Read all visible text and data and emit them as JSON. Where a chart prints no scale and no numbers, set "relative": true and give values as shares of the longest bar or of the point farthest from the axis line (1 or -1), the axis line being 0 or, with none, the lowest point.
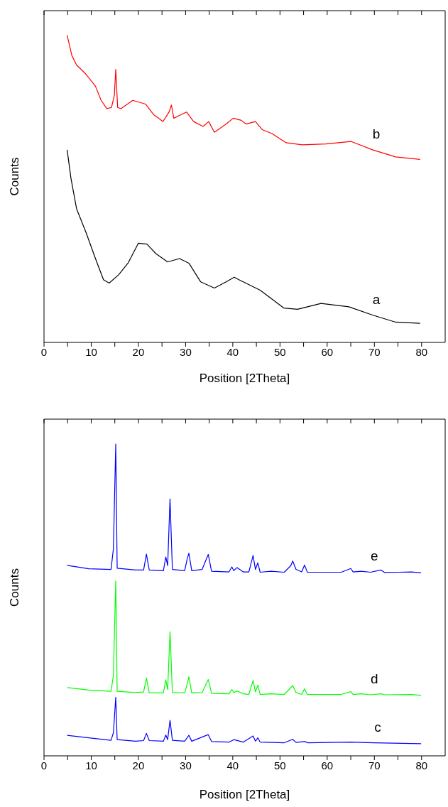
{
  "chart_data": [
    {
      "type": "line",
      "relative": true,
      "xlabel": "Position [2Theta]",
      "ylabel": "Counts",
      "xlim": [
        0,
        85
      ],
      "xticks": [
        0,
        {
          "value": 5,
          "label": null
        },
        10,
        {
          "value": 15,
          "label": null
        },
        20,
        {
          "value": 25,
          "label": null
        },
        30,
        {
          "value": 35,
          "label": null
        },
        40,
        {
          "value": 45,
          "label": null
        },
        50,
        {
          "value": 55,
          "label": null
        },
        60,
        {
          "value": 65,
          "label": null
        },
        70,
        {
          "value": 75,
          "label": null
        },
        80
      ],
      "series": [
        {
          "name": "b",
          "color": "#ff0000",
          "x": [
            4.9,
            5.9,
            6.9,
            8.9,
            10.9,
            12.1,
            13.3,
            14.3,
            14.9,
            15.2,
            15.6,
            16.3,
            18.8,
            21.5,
            23.2,
            25.2,
            26.5,
            27.0,
            27.5,
            30.2,
            31.7,
            33.7,
            34.9,
            36.1,
            38.6,
            40.1,
            41.8,
            42.8,
            44.8,
            46.3,
            48.3,
            51.3,
            54.7,
            59.7,
            65.1,
            69.6,
            74.5,
            79.7
          ],
          "values": [
            1.0,
            0.934,
            0.903,
            0.873,
            0.834,
            0.788,
            0.761,
            0.765,
            0.804,
            0.889,
            0.765,
            0.761,
            0.788,
            0.776,
            0.742,
            0.719,
            0.75,
            0.773,
            0.73,
            0.75,
            0.719,
            0.703,
            0.719,
            0.684,
            0.711,
            0.73,
            0.723,
            0.711,
            0.719,
            0.692,
            0.68,
            0.65,
            0.643,
            0.646,
            0.654,
            0.627,
            0.604,
            0.596
          ]
        },
        {
          "name": "a",
          "color": "#000000",
          "x": [
            4.9,
            5.7,
            6.9,
            8.9,
            10.9,
            12.6,
            13.8,
            15.8,
            17.8,
            20.0,
            21.8,
            23.7,
            26.2,
            28.7,
            30.7,
            33.2,
            36.1,
            38.6,
            40.3,
            41.3,
            45.8,
            50.8,
            53.7,
            58.7,
            64.6,
            69.6,
            74.5,
            79.7
          ],
          "values": [
            0.627,
            0.535,
            0.435,
            0.358,
            0.273,
            0.204,
            0.193,
            0.22,
            0.258,
            0.323,
            0.32,
            0.289,
            0.262,
            0.273,
            0.258,
            0.197,
            0.177,
            0.197,
            0.212,
            0.204,
            0.17,
            0.112,
            0.108,
            0.127,
            0.116,
            0.089,
            0.066,
            0.062
          ]
        }
      ]
    },
    {
      "type": "line",
      "relative": true,
      "xlabel": "Position [2Theta]",
      "ylabel": "Counts",
      "xlim": [
        0,
        85
      ],
      "xticks": [
        0,
        {
          "value": 5,
          "label": null
        },
        10,
        {
          "value": 15,
          "label": null
        },
        20,
        {
          "value": 25,
          "label": null
        },
        30,
        {
          "value": 35,
          "label": null
        },
        40,
        {
          "value": 45,
          "label": null
        },
        50,
        {
          "value": 55,
          "label": null
        },
        60,
        {
          "value": 65,
          "label": null
        },
        70,
        {
          "value": 75,
          "label": null
        },
        80
      ],
      "series": [
        {
          "name": "e",
          "color": "#0000ff",
          "x": [
            4.9,
            9.5,
            14.2,
            14.7,
            15.2,
            15.5,
            19.4,
            21.1,
            21.7,
            22.3,
            25.3,
            25.8,
            26.2,
            26.7,
            27.2,
            29.8,
            30.3,
            30.7,
            31.3,
            33.5,
            34.8,
            35.5,
            39.2,
            39.8,
            40.2,
            40.9,
            42.2,
            43.4,
            44.3,
            44.8,
            45.3,
            45.8,
            48.1,
            50.9,
            52.3,
            52.7,
            53.4,
            54.6,
            55.2,
            55.8,
            63.0,
            65.0,
            65.5,
            67.2,
            69.2,
            71.4,
            72.2,
            75.1,
            77.9,
            79.9
          ],
          "values": [
            0.611,
            0.6,
            0.598,
            0.664,
            1.0,
            0.602,
            0.596,
            0.596,
            0.647,
            0.596,
            0.594,
            0.638,
            0.61,
            0.824,
            0.598,
            0.594,
            0.629,
            0.65,
            0.594,
            0.598,
            0.646,
            0.592,
            0.59,
            0.606,
            0.594,
            0.604,
            0.59,
            0.59,
            0.643,
            0.598,
            0.619,
            0.589,
            0.592,
            0.589,
            0.61,
            0.625,
            0.598,
            0.59,
            0.612,
            0.589,
            0.589,
            0.601,
            0.59,
            0.592,
            0.589,
            0.596,
            0.588,
            0.589,
            0.59,
            0.587
          ]
        },
        {
          "name": "d",
          "color": "#00ff00",
          "x": [
            4.9,
            9.5,
            14.2,
            14.7,
            15.2,
            15.5,
            19.4,
            21.1,
            21.7,
            22.3,
            25.3,
            25.8,
            26.2,
            26.7,
            27.2,
            29.8,
            30.3,
            30.7,
            31.3,
            33.5,
            34.8,
            35.5,
            39.2,
            39.8,
            40.2,
            40.9,
            42.2,
            43.4,
            44.3,
            44.8,
            45.3,
            45.8,
            48.1,
            50.9,
            52.7,
            53.4,
            54.6,
            55.2,
            55.8,
            63.0,
            65.0,
            65.5,
            67.2,
            69.2,
            71.4,
            72.2,
            77.9,
            79.9
          ],
          "values": [
            0.219,
            0.211,
            0.207,
            0.258,
            0.561,
            0.207,
            0.203,
            0.205,
            0.25,
            0.202,
            0.202,
            0.244,
            0.213,
            0.398,
            0.203,
            0.202,
            0.228,
            0.254,
            0.202,
            0.203,
            0.245,
            0.2,
            0.199,
            0.213,
            0.203,
            0.208,
            0.199,
            0.197,
            0.242,
            0.205,
            0.227,
            0.197,
            0.199,
            0.197,
            0.225,
            0.203,
            0.197,
            0.215,
            0.197,
            0.197,
            0.206,
            0.197,
            0.199,
            0.196,
            0.199,
            0.196,
            0.197,
            0.194
          ]
        },
        {
          "name": "c",
          "color": "#0000ff",
          "x": [
            4.9,
            9.5,
            14.2,
            14.7,
            15.2,
            15.5,
            19.4,
            21.1,
            21.7,
            22.3,
            25.3,
            25.8,
            26.2,
            26.7,
            27.2,
            29.8,
            30.7,
            31.3,
            34.8,
            35.5,
            39.2,
            40.2,
            42.2,
            44.3,
            44.8,
            45.3,
            45.8,
            50.9,
            52.7,
            53.4,
            55.2,
            56.0,
            65.0,
            70.0,
            79.9
          ],
          "values": [
            0.066,
            0.058,
            0.05,
            0.074,
            0.188,
            0.052,
            0.047,
            0.049,
            0.072,
            0.049,
            0.047,
            0.067,
            0.052,
            0.114,
            0.05,
            0.047,
            0.066,
            0.047,
            0.068,
            0.046,
            0.044,
            0.052,
            0.044,
            0.064,
            0.047,
            0.058,
            0.044,
            0.042,
            0.053,
            0.043,
            0.046,
            0.042,
            0.044,
            0.042,
            0.039
          ]
        }
      ]
    }
  ]
}
